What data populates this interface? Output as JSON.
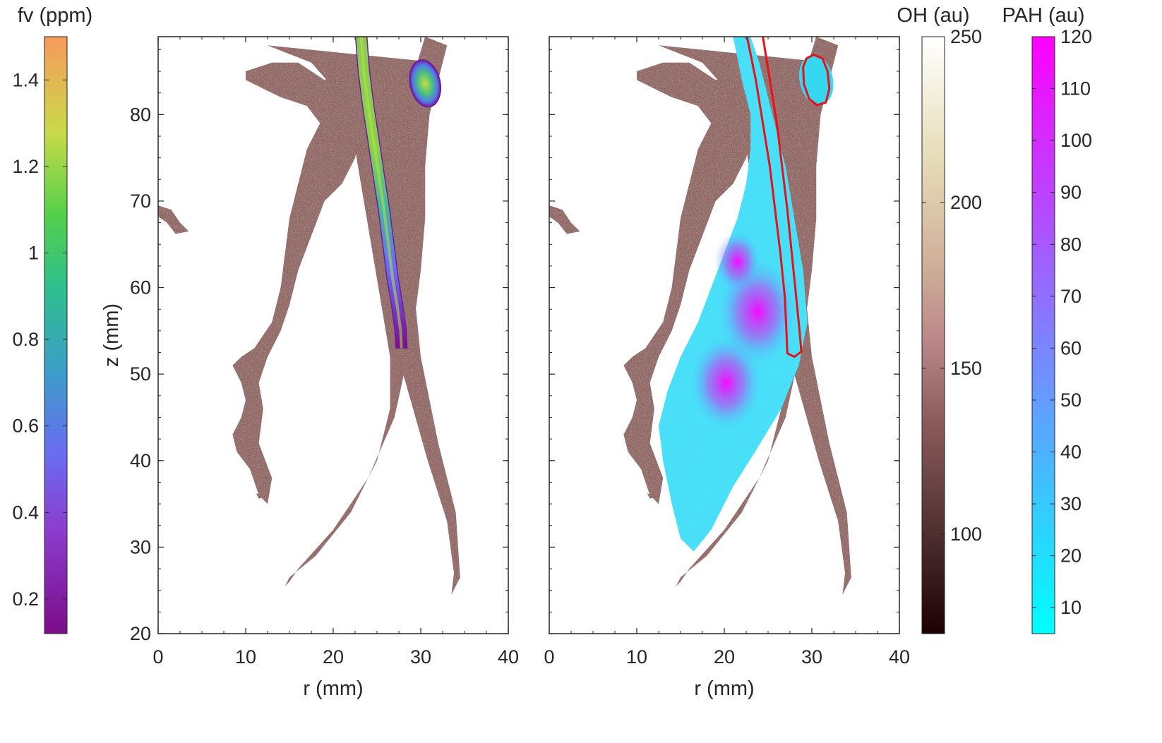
{
  "chart_data": [
    {
      "type": "heatmap",
      "panel": "left",
      "xlabel": "r (mm)",
      "ylabel": "z (mm)",
      "xlim": [
        0,
        40
      ],
      "ylim": [
        20,
        89
      ],
      "xticks": [
        0,
        10,
        20,
        30,
        40
      ],
      "yticks": [
        20,
        30,
        40,
        50,
        60,
        70,
        80
      ],
      "grid": false,
      "layers": [
        {
          "name": "OH",
          "colormap": "pink",
          "regions": [
            {
              "kind": "outer-flame-front",
              "outline": [
                [
                  12.5,
                  88
                ],
                [
                  17.5,
                  86
                ],
                [
                  21,
                  82
                ],
                [
                  22.5,
                  76
                ],
                [
                  23.5,
                  70
                ],
                [
                  24.5,
                  64
                ],
                [
                  25.5,
                  58
                ],
                [
                  26.5,
                  52
                ],
                [
                  26.5,
                  46
                ],
                [
                  25,
                  40
                ],
                [
                  22,
                  34
                ],
                [
                  18,
                  29
                ],
                [
                  15,
                  26.5
                ],
                [
                  14.5,
                  25.5
                ],
                [
                  15,
                  26
                ],
                [
                  16,
                  27.5
                ],
                [
                  20,
                  32
                ],
                [
                  24,
                  38
                ],
                [
                  27,
                  45
                ],
                [
                  28.5,
                  52
                ],
                [
                  29.5,
                  58
                ],
                [
                  30,
                  62
                ],
                [
                  30.5,
                  68
                ],
                [
                  30.5,
                  74
                ],
                [
                  31,
                  80
                ],
                [
                  32,
                  84
                ],
                [
                  33,
                  88
                ],
                [
                  30.5,
                  89
                ],
                [
                  27.8,
                  80
                ],
                [
                  27,
                  72
                ],
                [
                  26.5,
                  62
                ],
                [
                  28,
                  50
                ],
                [
                  30.8,
                  40
                ],
                [
                  33,
                  33
                ],
                [
                  33.8,
                  27
                ],
                [
                  33.5,
                  24.5
                ],
                [
                  34.5,
                  26.5
                ],
                [
                  34,
                  34
                ],
                [
                  32,
                  42
                ],
                [
                  30,
                  52
                ],
                [
                  29,
                  62
                ],
                [
                  29,
                  72
                ],
                [
                  30,
                  80
                ],
                [
                  32,
                  86
                ]
              ]
            },
            {
              "kind": "inner-lobe",
              "outline": [
                [
                  10,
                  85
                ],
                [
                  13,
                  86
                ],
                [
                  16,
                  86
                ],
                [
                  19,
                  84
                ],
                [
                  22,
                  85
                ],
                [
                  23.5,
                  80
                ],
                [
                  22.5,
                  75
                ],
                [
                  21,
                  72
                ],
                [
                  19,
                  70
                ],
                [
                  17.5,
                  66
                ],
                [
                  16,
                  62
                ],
                [
                  15,
                  58
                ],
                [
                  14,
                  55
                ],
                [
                  12.5,
                  52
                ],
                [
                  11.5,
                  49
                ],
                [
                  12,
                  46
                ],
                [
                  11.5,
                  42
                ],
                [
                  13,
                  38
                ],
                [
                  12.5,
                  35
                ],
                [
                  11.5,
                  36
                ],
                [
                  10.5,
                  39
                ],
                [
                  9,
                  41
                ],
                [
                  8.5,
                  43
                ],
                [
                  9.5,
                  45
                ],
                [
                  10,
                  47
                ],
                [
                  9.5,
                  49
                ],
                [
                  8.5,
                  51
                ],
                [
                  9.5,
                  52
                ],
                [
                  11,
                  53
                ],
                [
                  13,
                  56
                ],
                [
                  14,
                  60
                ],
                [
                  14.5,
                  64
                ],
                [
                  15,
                  68
                ],
                [
                  16,
                  72
                ],
                [
                  17,
                  76
                ],
                [
                  18.5,
                  79
                ],
                [
                  17,
                  81
                ],
                [
                  14,
                  82
                ],
                [
                  12,
                  83
                ],
                [
                  10,
                  84
                ]
              ]
            },
            {
              "kind": "islet",
              "outline": [
                [
                  0,
                  69.5
                ],
                [
                  1.5,
                  69
                ],
                [
                  2.5,
                  67.5
                ],
                [
                  3.5,
                  66.5
                ],
                [
                  2,
                  66.2
                ],
                [
                  1,
                  67.5
                ],
                [
                  0,
                  68.2
                ]
              ]
            },
            {
              "kind": "islet",
              "outline": [
                [
                  11.2,
                  36.2
                ],
                [
                  12,
                  36
                ],
                [
                  12.2,
                  35.8
                ],
                [
                  11.5,
                  35.6
                ]
              ]
            }
          ],
          "value_range": [
            80,
            170
          ]
        },
        {
          "name": "fv",
          "colormap": "fv",
          "regions": [
            {
              "kind": "soot-filament",
              "centerline": [
                [
                  23.2,
                  89,
                  0.5
                ],
                [
                  23.5,
                  85,
                  0.7
                ],
                [
                  24,
                  81,
                  0.9
                ],
                [
                  24.6,
                  77,
                  1.0
                ],
                [
                  25.2,
                  73,
                  1.1
                ],
                [
                  25.8,
                  69,
                  1.15
                ],
                [
                  26.3,
                  65,
                  1.2
                ],
                [
                  26.8,
                  61,
                  1.0
                ],
                [
                  27.3,
                  58,
                  0.6
                ],
                [
                  27.7,
                  55,
                  0.35
                ],
                [
                  27.8,
                  53,
                  0.2
                ]
              ],
              "width_mm": 1.3
            },
            {
              "kind": "soot-blob",
              "center": [
                30.5,
                83.6
              ],
              "radii_mm": [
                1.7,
                2.7
              ],
              "peak": 1.25
            }
          ],
          "value_range": [
            0.12,
            1.5
          ]
        }
      ]
    },
    {
      "type": "heatmap",
      "panel": "right",
      "xlabel": "r (mm)",
      "ylabel": "",
      "xlim": [
        0,
        40
      ],
      "ylim": [
        20,
        89
      ],
      "xticks": [
        0,
        10,
        20,
        30,
        40
      ],
      "yticks": [
        20,
        30,
        40,
        50,
        60,
        70,
        80
      ],
      "grid": false,
      "layers": [
        {
          "name": "OH",
          "colormap": "pink",
          "same_as": "left"
        },
        {
          "name": "PAH",
          "colormap": "cool",
          "regions": [
            {
              "kind": "pah-cloud",
              "outline": [
                [
                  21,
                  89
                ],
                [
                  23,
                  89
                ],
                [
                  24,
                  86
                ],
                [
                  25.5,
                  80
                ],
                [
                  27,
                  74
                ],
                [
                  28,
                  68
                ],
                [
                  29,
                  62
                ],
                [
                  29.5,
                  56
                ],
                [
                  28.5,
                  51
                ],
                [
                  26.5,
                  46
                ],
                [
                  23.5,
                  41
                ],
                [
                  21,
                  37
                ],
                [
                  18.5,
                  32
                ],
                [
                  16.5,
                  29.5
                ],
                [
                  15,
                  31
                ],
                [
                  14,
                  35
                ],
                [
                  13,
                  40
                ],
                [
                  12.5,
                  44
                ],
                [
                  13.5,
                  48
                ],
                [
                  15,
                  52
                ],
                [
                  17,
                  56
                ],
                [
                  18.5,
                  60
                ],
                [
                  20,
                  64
                ],
                [
                  21.5,
                  68
                ],
                [
                  22.5,
                  72
                ],
                [
                  23,
                  76
                ],
                [
                  23,
                  80
                ],
                [
                  22,
                  84
                ]
              ],
              "hotspots": [
                [
                  23.8,
                  57.2,
                  95
                ],
                [
                  20.2,
                  49,
                  85
                ],
                [
                  21.5,
                  63,
                  55
                ]
              ]
            },
            {
              "kind": "pah-blob",
              "center": [
                30.5,
                84
              ],
              "radii_mm": [
                1.9,
                2.9
              ],
              "value": 20
            }
          ],
          "value_range": [
            5,
            120
          ]
        },
        {
          "name": "soot-contour",
          "color": "#e8111a",
          "contours": [
            [
              [
                22.6,
                89
              ],
              [
                23.6,
                84
              ],
              [
                24.4,
                79
              ],
              [
                25.2,
                74
              ],
              [
                25.8,
                69
              ],
              [
                26.4,
                64
              ],
              [
                26.9,
                59
              ],
              [
                27.1,
                55
              ],
              [
                27.2,
                52.4
              ],
              [
                28,
                52
              ],
              [
                28.8,
                52.6
              ],
              [
                28.6,
                55
              ],
              [
                28.2,
                59
              ],
              [
                27.7,
                64
              ],
              [
                27.2,
                69
              ],
              [
                26.6,
                74
              ],
              [
                26,
                79
              ],
              [
                25.2,
                84
              ],
              [
                24.4,
                89
              ]
            ],
            [
              [
                29,
                85.5
              ],
              [
                29.4,
                86.5
              ],
              [
                30.2,
                86.9
              ],
              [
                31.2,
                86.5
              ],
              [
                31.8,
                85
              ],
              [
                32,
                83
              ],
              [
                31.6,
                81.4
              ],
              [
                30.6,
                81.1
              ],
              [
                29.7,
                81.8
              ],
              [
                29.1,
                83.5
              ]
            ]
          ]
        }
      ]
    }
  ],
  "colorbars": [
    {
      "title": "fv (ppm)",
      "colormap": "fv",
      "range": [
        0.12,
        1.5
      ],
      "ticks": [
        0.2,
        0.4,
        0.6,
        0.8,
        1,
        1.2,
        1.4
      ],
      "tick_labels": [
        "0.2",
        "0.4",
        "0.6",
        "0.8",
        "1",
        "1.2",
        "1.4"
      ],
      "tick_side": "left"
    },
    {
      "title": "OH (au)",
      "colormap": "pink",
      "range": [
        70,
        250
      ],
      "ticks": [
        100,
        150,
        200,
        250
      ],
      "tick_labels": [
        "100",
        "150",
        "200",
        "250"
      ],
      "tick_side": "right"
    },
    {
      "title": "PAH (au)",
      "colormap": "cool",
      "range": [
        5,
        120
      ],
      "ticks": [
        10,
        20,
        30,
        40,
        50,
        60,
        70,
        80,
        90,
        100,
        110,
        120
      ],
      "tick_labels": [
        "10",
        "20",
        "30",
        "40",
        "50",
        "60",
        "70",
        "80",
        "90",
        "100",
        "110",
        "120"
      ],
      "tick_side": "right"
    }
  ],
  "colors": {
    "axis": "#262626",
    "soot_contour": "#e8111a"
  }
}
